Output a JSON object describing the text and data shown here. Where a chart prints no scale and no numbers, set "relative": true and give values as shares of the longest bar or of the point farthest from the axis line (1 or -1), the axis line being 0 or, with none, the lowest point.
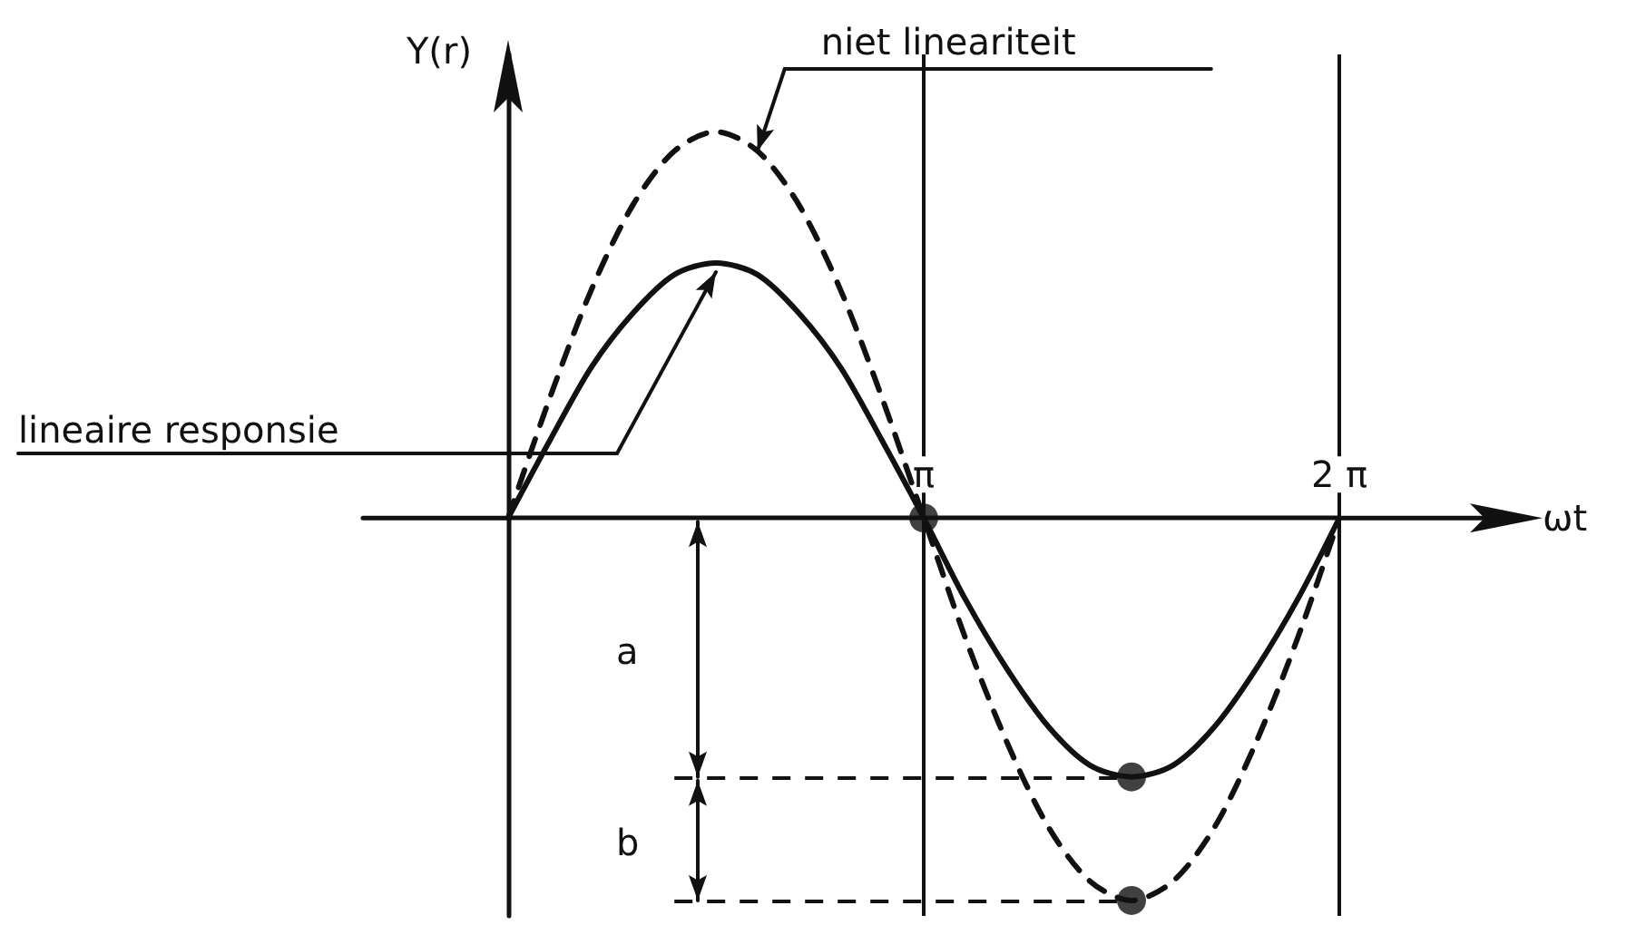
{
  "chart_data": {
    "type": "line",
    "relative": true,
    "xlabel": "ωt",
    "ylabel": "Y(r)",
    "grid": "x",
    "categories": [
      null,
      null,
      null,
      null,
      null,
      null,
      null,
      null,
      null,
      null,
      "π",
      null,
      null,
      null,
      null,
      null,
      null,
      null,
      null,
      null,
      "2 π"
    ],
    "series": [
      {
        "color": "#111111",
        "line_style": "solid",
        "marker": "none",
        "values": [
          0,
          0.2,
          0.39,
          0.53,
          0.63,
          0.66,
          0.63,
          0.53,
          0.39,
          0.2,
          0,
          -0.21,
          -0.39,
          -0.54,
          -0.64,
          -0.67,
          -0.64,
          -0.54,
          -0.39,
          -0.21,
          0
        ]
      },
      {
        "color": "#111111",
        "line_style": "dashed",
        "marker": "none",
        "values": [
          0,
          0.31,
          0.59,
          0.81,
          0.95,
          1,
          0.95,
          0.81,
          0.59,
          0.31,
          0,
          -0.31,
          -0.58,
          -0.8,
          -0.94,
          -0.99,
          -0.94,
          -0.8,
          -0.58,
          -0.31,
          0
        ]
      },
      {
        "type": "scatter",
        "color": "#111111",
        "marker": "circle",
        "values": [
          null,
          null,
          null,
          null,
          null,
          null,
          null,
          null,
          null,
          null,
          0,
          null,
          null,
          null,
          null,
          -0.67,
          null,
          null,
          null,
          null,
          null
        ]
      },
      {
        "type": "scatter",
        "color": "#111111",
        "marker": "circle",
        "values": [
          null,
          null,
          null,
          null,
          null,
          null,
          null,
          null,
          null,
          null,
          null,
          null,
          null,
          null,
          null,
          -0.99,
          null,
          null,
          null,
          null,
          null
        ]
      }
    ],
    "ref_lines": [
      {
        "axis": "y",
        "value": -0.67,
        "line_style": "dashed"
      },
      {
        "axis": "y",
        "value": -0.99,
        "line_style": "dashed"
      }
    ],
    "annotations": [
      "lineaire responsie",
      "niet lineariteit",
      "a",
      "b"
    ]
  }
}
